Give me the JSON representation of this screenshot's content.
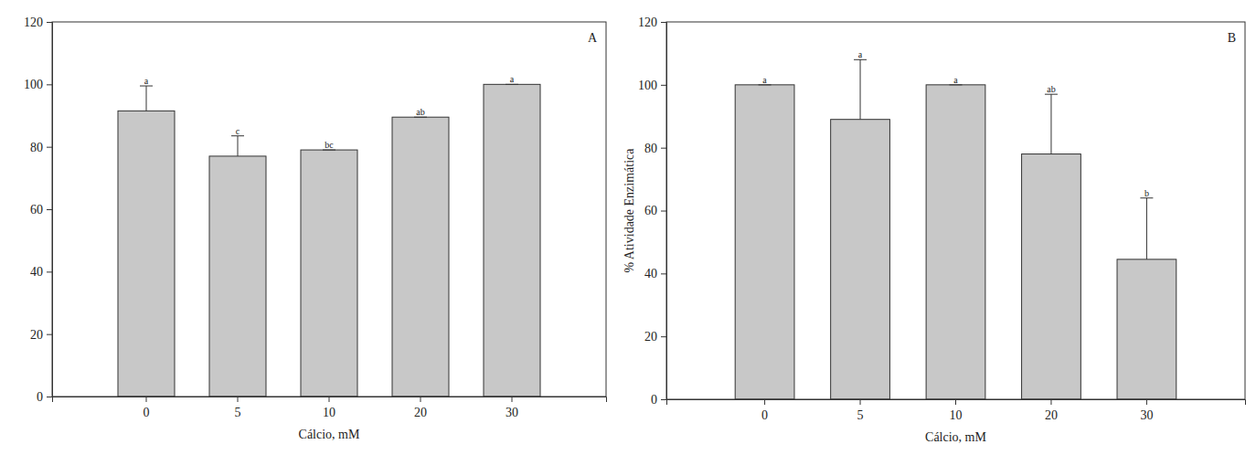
{
  "chart_data": [
    {
      "type": "bar",
      "title": "A",
      "categories": [
        "0",
        "5",
        "10",
        "20",
        "30"
      ],
      "values": [
        91.5,
        77,
        79,
        89.5,
        100
      ],
      "errors": [
        8,
        6.5,
        0,
        0,
        0
      ],
      "annotations": [
        "a",
        "c",
        "bc",
        "ab",
        "a"
      ],
      "x_label": "Cálcio, mM",
      "color": "#c8c8c8",
      "ylim": [
        0,
        120
      ],
      "yticks": [
        0,
        20,
        40,
        60,
        80,
        100,
        120
      ]
    },
    {
      "type": "bar",
      "title": "B",
      "categories": [
        "0",
        "5",
        "10",
        "20",
        "30"
      ],
      "values": [
        100,
        89,
        100,
        78,
        44.5
      ],
      "errors": [
        0,
        19,
        0,
        19,
        19.5
      ],
      "annotations": [
        "a",
        "a",
        "a",
        "ab",
        "b"
      ],
      "x_label": "Cálcio, mM",
      "y_label": "% Atividade Enzimática",
      "color": "#c8c8c8",
      "ylim": [
        0,
        120
      ],
      "yticks": [
        0,
        20,
        40,
        60,
        80,
        100,
        120
      ]
    }
  ]
}
